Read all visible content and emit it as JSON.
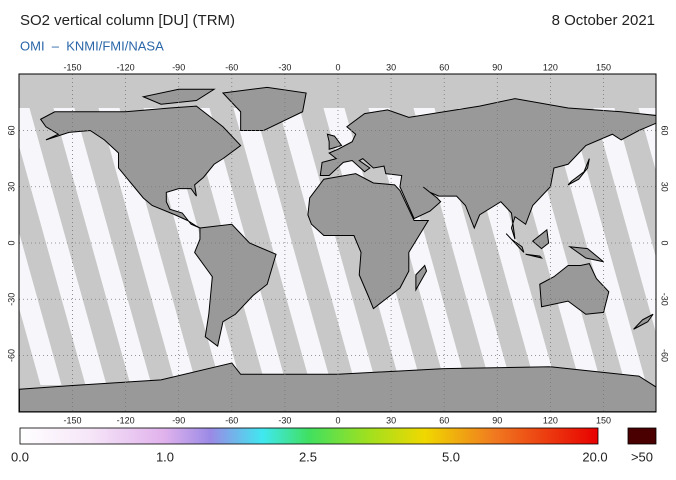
{
  "header": {
    "title": "SO2 vertical column [DU] (TRM)",
    "date": "8 October 2021",
    "source": "OMI  –  KNMI/FMI/NASA"
  },
  "map": {
    "lon_ticks": [
      -150,
      -120,
      -90,
      -60,
      -30,
      0,
      30,
      60,
      90,
      120,
      150
    ],
    "lat_ticks": [
      60,
      30,
      0,
      -30,
      -60
    ]
  },
  "colorbar": {
    "labels": [
      "0.0",
      "1.0",
      "2.5",
      "5.0",
      "20.0"
    ],
    "overflow_label": ">50"
  }
}
